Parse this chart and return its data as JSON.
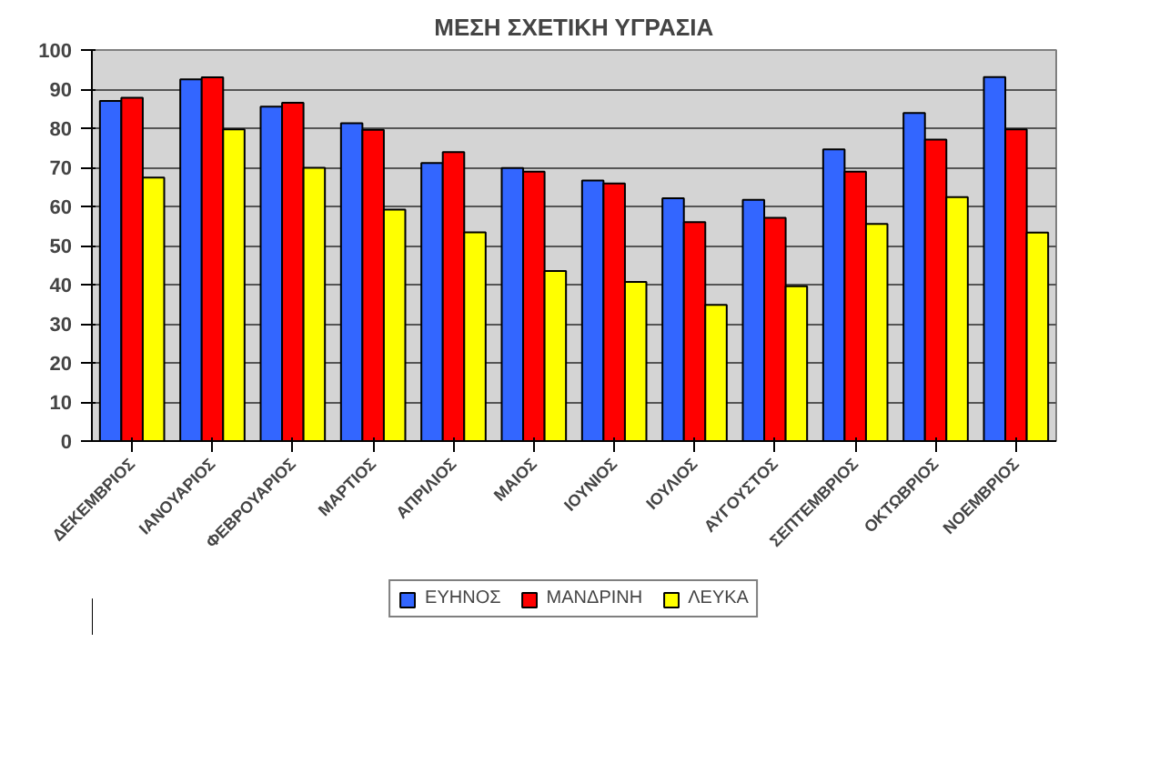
{
  "chart_data": {
    "type": "bar",
    "title": "ΜΕΣΗ ΣΧΕΤΙΚΗ ΥΓΡΑΣΙΑ",
    "categories": [
      "ΔΕΚΕΜΒΡΙΟΣ",
      "ΙΑΝΟΥΑΡΙΟΣ",
      "ΦΕΒΡΟΥΑΡΙΟΣ",
      "ΜΑΡΤΙΟΣ",
      "ΑΠΡΙΛΙΟΣ",
      "ΜΑΙΟΣ",
      "ΙΟΥΝΙΟΣ",
      "ΙΟΥΛΙΟΣ",
      "ΑΥΓΟΥΣΤΟΣ",
      "ΣΕΠΤΕΜΒΡΙΟΣ",
      "ΟΚΤΩΒΡΙΟΣ",
      "ΝΟΕΜΒΡΙΟΣ"
    ],
    "series": [
      {
        "name": "ΕΥΗΝΟΣ",
        "color": "#3366ff",
        "values": [
          87,
          92.5,
          85.5,
          81.3,
          71.1,
          69.8,
          66.6,
          62.1,
          61.7,
          74.6,
          83.9,
          93.1
        ]
      },
      {
        "name": "ΜΑΝΔΡΙΝΗ",
        "color": "#ff0000",
        "values": [
          87.8,
          93,
          86.5,
          79.6,
          73.9,
          68.9,
          65.9,
          56,
          57.1,
          68.9,
          77.1,
          79.7
        ]
      },
      {
        "name": "ΛΕΥΚΑ",
        "color": "#ffff00",
        "values": [
          67.4,
          79.7,
          69.9,
          59.2,
          53.4,
          43.5,
          40.7,
          34.8,
          39.6,
          55.5,
          62.4,
          53.3
        ]
      }
    ],
    "ylim": [
      0,
      100
    ],
    "yticks": [
      0,
      10,
      20,
      30,
      40,
      50,
      60,
      70,
      80,
      90,
      100
    ],
    "grid": "y",
    "legend": "bottom"
  }
}
